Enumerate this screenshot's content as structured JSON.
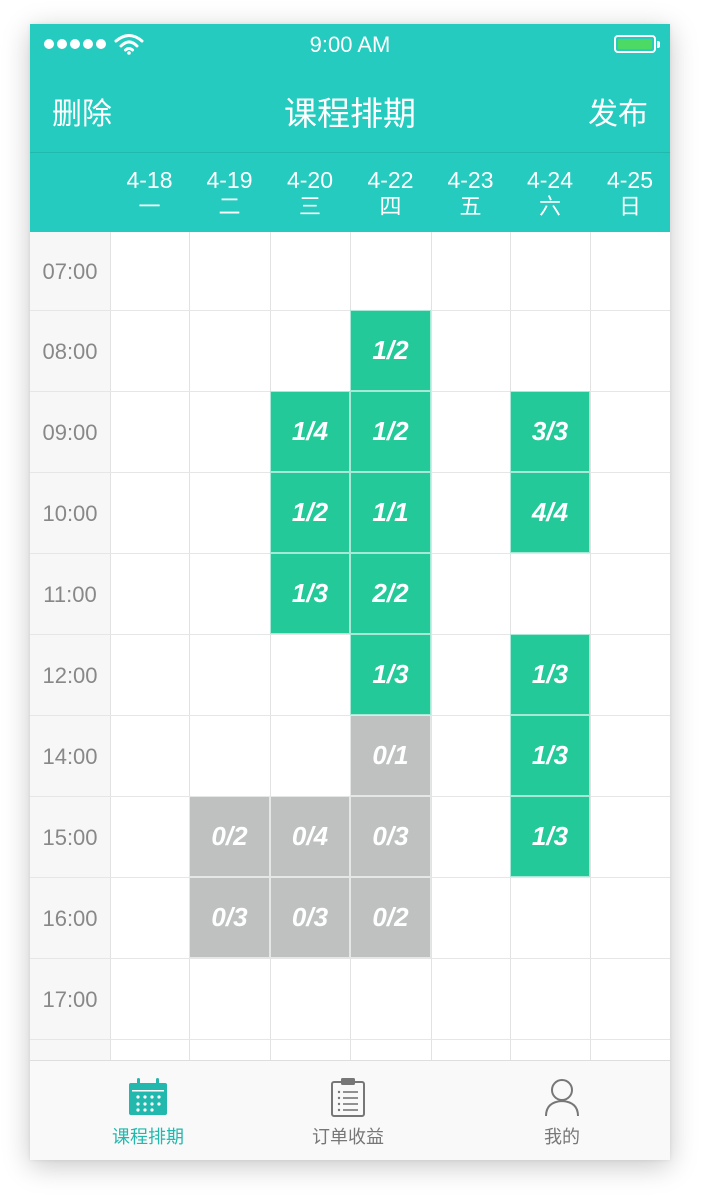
{
  "status_bar": {
    "time": "9:00 AM",
    "signal_icon": "signal-dots-icon",
    "wifi_icon": "wifi-icon",
    "battery_icon": "battery-icon",
    "battery_color": "#4cd964"
  },
  "nav": {
    "left_label": "删除",
    "title": "课程排期",
    "right_label": "发布"
  },
  "colors": {
    "brand": "#24cbbe",
    "active_slot": "#24c99a",
    "empty_slot": "#bec1c0"
  },
  "days": [
    {
      "date": "4-18",
      "weekday": "一"
    },
    {
      "date": "4-19",
      "weekday": "二"
    },
    {
      "date": "4-20",
      "weekday": "三"
    },
    {
      "date": "4-22",
      "weekday": "四"
    },
    {
      "date": "4-23",
      "weekday": "五"
    },
    {
      "date": "4-24",
      "weekday": "六"
    },
    {
      "date": "4-25",
      "weekday": "日"
    }
  ],
  "times": [
    "07:00",
    "08:00",
    "09:00",
    "10:00",
    "11:00",
    "12:00",
    "14:00",
    "15:00",
    "16:00",
    "17:00"
  ],
  "slots": [
    {
      "day": 3,
      "row": 1,
      "label": "1/2",
      "state": "active"
    },
    {
      "day": 2,
      "row": 2,
      "label": "1/4",
      "state": "active"
    },
    {
      "day": 3,
      "row": 2,
      "label": "1/2",
      "state": "active"
    },
    {
      "day": 5,
      "row": 2,
      "label": "3/3",
      "state": "active"
    },
    {
      "day": 2,
      "row": 3,
      "label": "1/2",
      "state": "active"
    },
    {
      "day": 3,
      "row": 3,
      "label": "1/1",
      "state": "active"
    },
    {
      "day": 5,
      "row": 3,
      "label": "4/4",
      "state": "active"
    },
    {
      "day": 2,
      "row": 4,
      "label": "1/3",
      "state": "active"
    },
    {
      "day": 3,
      "row": 4,
      "label": "2/2",
      "state": "active"
    },
    {
      "day": 3,
      "row": 5,
      "label": "1/3",
      "state": "active"
    },
    {
      "day": 5,
      "row": 5,
      "label": "1/3",
      "state": "active"
    },
    {
      "day": 3,
      "row": 6,
      "label": "0/1",
      "state": "empty"
    },
    {
      "day": 5,
      "row": 6,
      "label": "1/3",
      "state": "active"
    },
    {
      "day": 1,
      "row": 7,
      "label": "0/2",
      "state": "empty"
    },
    {
      "day": 2,
      "row": 7,
      "label": "0/4",
      "state": "empty"
    },
    {
      "day": 3,
      "row": 7,
      "label": "0/3",
      "state": "empty"
    },
    {
      "day": 5,
      "row": 7,
      "label": "1/3",
      "state": "active"
    },
    {
      "day": 1,
      "row": 8,
      "label": "0/3",
      "state": "empty"
    },
    {
      "day": 2,
      "row": 8,
      "label": "0/3",
      "state": "empty"
    },
    {
      "day": 3,
      "row": 8,
      "label": "0/2",
      "state": "empty"
    }
  ],
  "tabs": [
    {
      "label": "课程排期",
      "icon": "calendar-icon",
      "selected": true
    },
    {
      "label": "订单收益",
      "icon": "clipboard-icon",
      "selected": false
    },
    {
      "label": "我的",
      "icon": "person-icon",
      "selected": false
    }
  ]
}
